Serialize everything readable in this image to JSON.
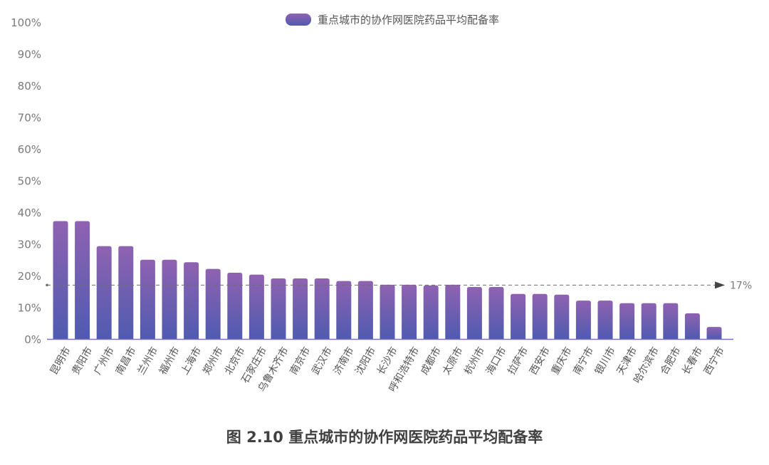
{
  "chart_data": {
    "type": "bar",
    "caption": "图 2.10 重点城市的协作网医院药品平均配备率",
    "legend": {
      "position": "top-center",
      "entries": [
        "重点城市的协作网医院药品平均配备率"
      ]
    },
    "categories": [
      "昆明市",
      "贵阳市",
      "广州市",
      "南昌市",
      "兰州市",
      "福州市",
      "上海市",
      "郑州市",
      "北京市",
      "石家庄市",
      "乌鲁木齐市",
      "南京市",
      "武汉市",
      "济南市",
      "沈阳市",
      "长沙市",
      "呼和浩特市",
      "成都市",
      "太原市",
      "杭州市",
      "海口市",
      "拉萨市",
      "西安市",
      "重庆市",
      "南宁市",
      "银川市",
      "天津市",
      "哈尔滨市",
      "合肥市",
      "长春市",
      "西宁市"
    ],
    "series": [
      {
        "name": "重点城市的协作网医院药品平均配备率",
        "values": [
          37.2,
          37.2,
          29.3,
          29.3,
          25.0,
          25.0,
          24.2,
          22.1,
          20.9,
          20.3,
          19.1,
          19.1,
          19.1,
          18.3,
          18.3,
          17.1,
          17.1,
          16.9,
          17.1,
          16.4,
          16.4,
          14.2,
          14.2,
          14.0,
          12.1,
          12.1,
          11.3,
          11.3,
          11.3,
          8.1,
          3.8
        ]
      }
    ],
    "reference_line": {
      "value": 17,
      "label": "17%"
    },
    "yticks": [
      "0%",
      "10%",
      "20%",
      "30%",
      "40%",
      "50%",
      "60%",
      "70%",
      "80%",
      "90%",
      "100%"
    ],
    "ylim": [
      0,
      100
    ],
    "grid": false,
    "colors": {
      "bar_top": "#8f62b1",
      "bar_bottom": "#4f5bb0",
      "axis": "#7b6fc0",
      "ref_line": "#6e6e6e"
    }
  }
}
